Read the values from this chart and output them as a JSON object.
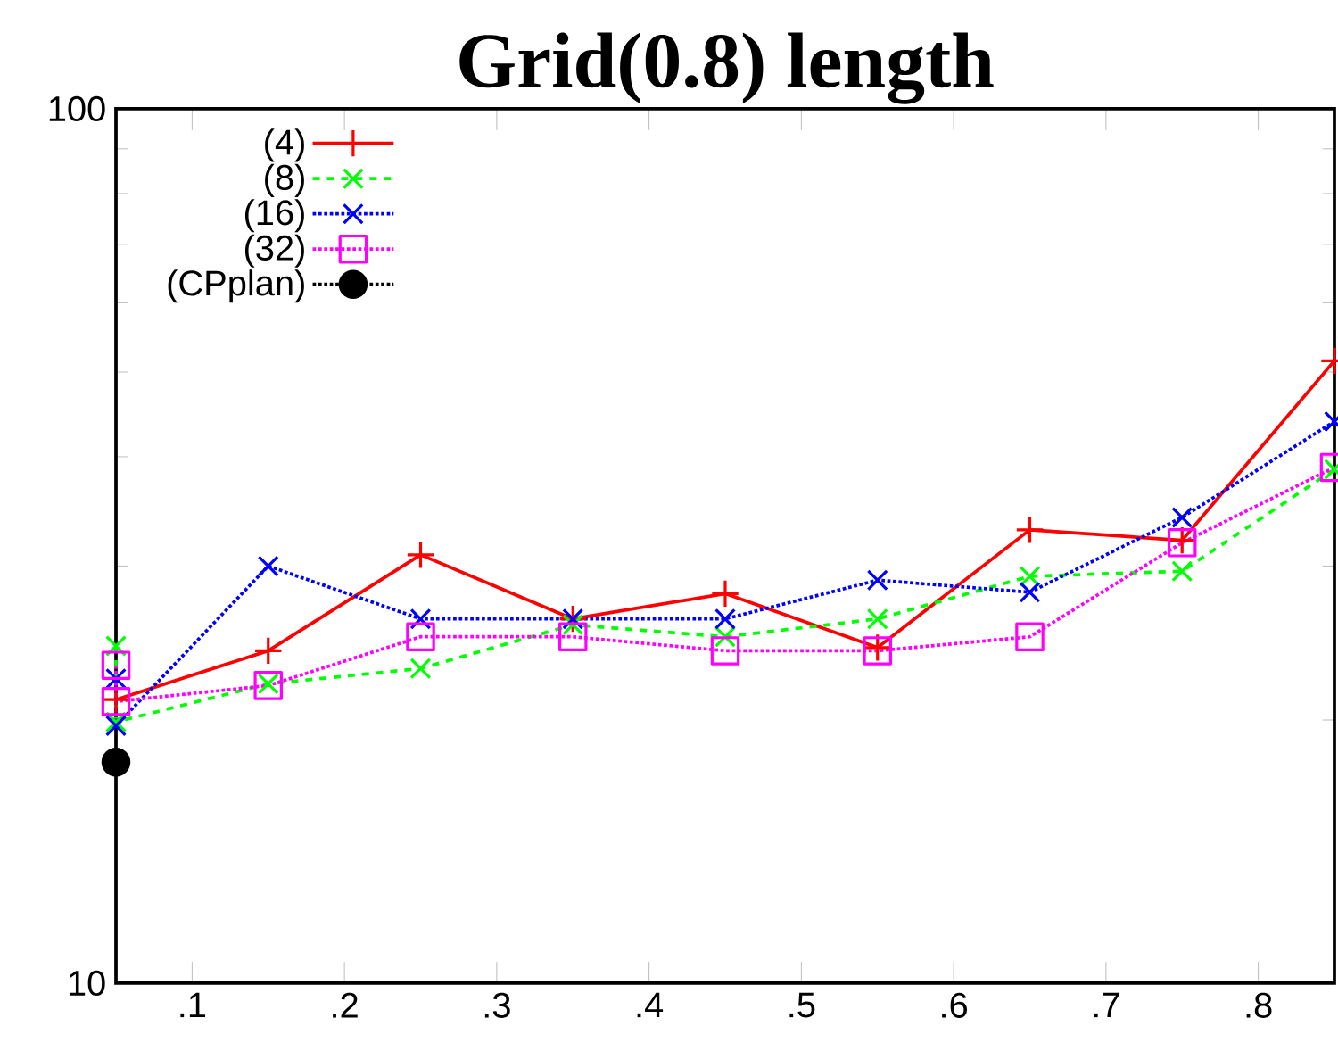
{
  "chart_data": {
    "type": "line",
    "title": "Grid(0.8) length",
    "log": "y",
    "xlim": [
      0.05,
      0.85
    ],
    "ylim": [
      10,
      100
    ],
    "xticks": [
      {
        "value": 0.1,
        "label": ".1"
      },
      {
        "value": 0.2,
        "label": ".2"
      },
      {
        "value": 0.3,
        "label": ".3"
      },
      {
        "value": 0.4,
        "label": ".4"
      },
      {
        "value": 0.5,
        "label": ".5"
      },
      {
        "value": 0.6,
        "label": ".6"
      },
      {
        "value": 0.7,
        "label": ".7"
      },
      {
        "value": 0.8,
        "label": ".8"
      }
    ],
    "yticks": [
      10,
      100
    ],
    "grid": false,
    "legend": "top left",
    "series": [
      {
        "name": "(4)",
        "color": "#ff0000",
        "marker": "plus",
        "line_style": "solid",
        "x": [
          0.05,
          0.15,
          0.25,
          0.35,
          0.45,
          0.55,
          0.65,
          0.75,
          0.85
        ],
        "values": [
          21.1,
          24.0,
          30.9,
          26.1,
          27.9,
          24.2,
          33.0,
          32.1,
          51.5
        ]
      },
      {
        "name": "(8)",
        "color": "#00ff00",
        "marker": "cross",
        "line_style": "dashed",
        "x": [
          0.05,
          0.05,
          0.15,
          0.25,
          0.35,
          0.45,
          0.55,
          0.65,
          0.75,
          0.85
        ],
        "values": [
          24.3,
          19.9,
          22.0,
          22.9,
          25.7,
          24.9,
          26.1,
          29.2,
          29.6,
          38.7
        ]
      },
      {
        "name": "(16)",
        "color": "#0000ff",
        "marker": "cross",
        "line_style": "dotted",
        "x": [
          0.05,
          0.05,
          0.15,
          0.25,
          0.35,
          0.45,
          0.55,
          0.65,
          0.75,
          0.85
        ],
        "values": [
          22.3,
          19.7,
          30.0,
          26.1,
          26.1,
          26.1,
          28.9,
          28.0,
          34.1,
          43.9
        ]
      },
      {
        "name": "(32)",
        "color": "#ff00ff",
        "marker": "square",
        "line_style": "dotted",
        "x": [
          0.05,
          0.05,
          0.15,
          0.25,
          0.35,
          0.45,
          0.55,
          0.65,
          0.75,
          0.85
        ],
        "values": [
          23.1,
          21.0,
          21.9,
          24.9,
          24.9,
          24.0,
          24.0,
          24.9,
          31.9,
          38.9
        ]
      },
      {
        "name": "(CPplan)",
        "color": "#000000",
        "marker": "circle",
        "line_style": "dotted",
        "x": [
          0.05
        ],
        "values": [
          17.9
        ]
      }
    ]
  }
}
